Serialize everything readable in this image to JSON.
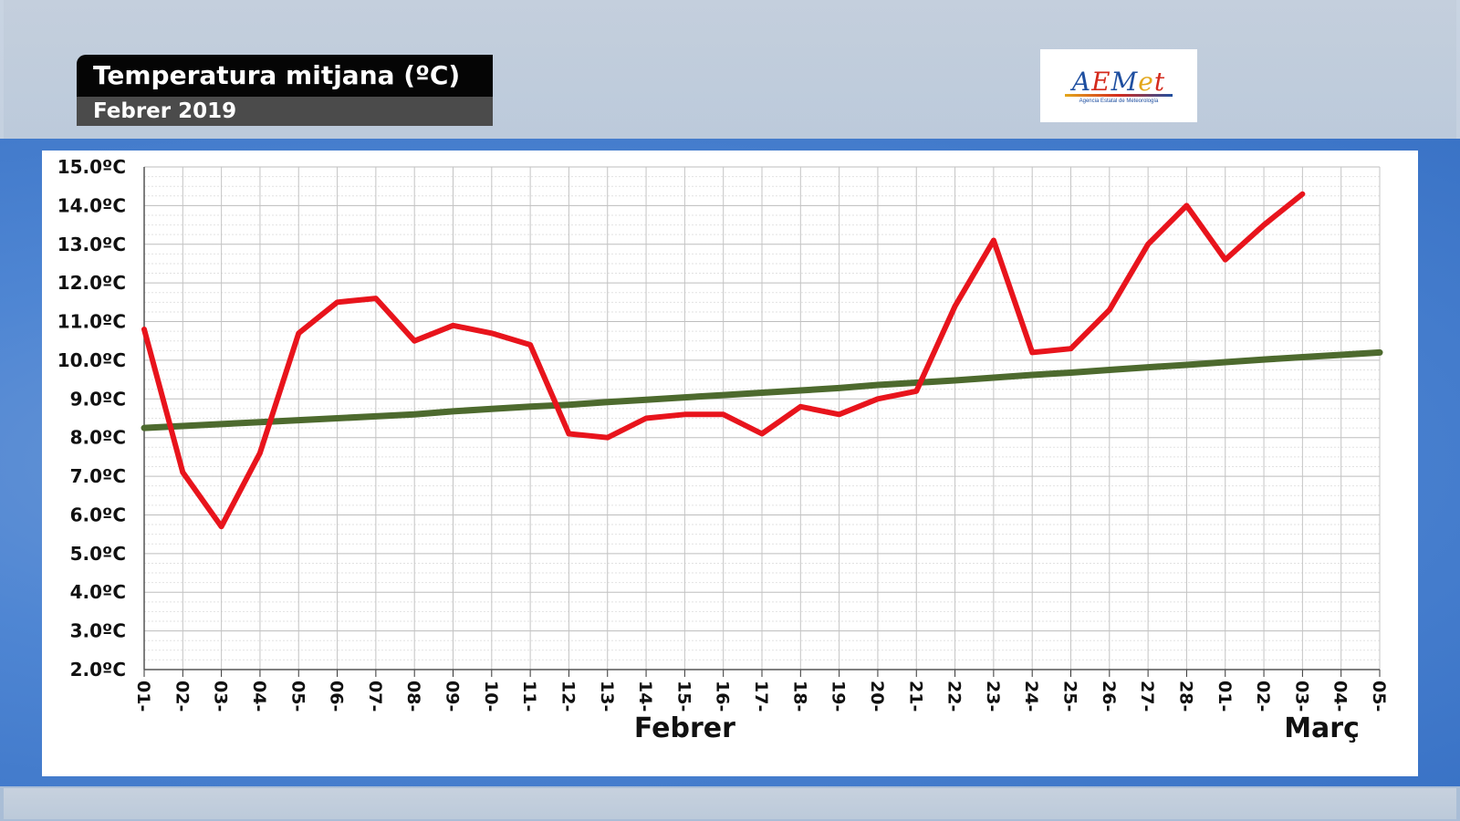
{
  "header": {
    "title": "Temperatura mitjana (ºC)",
    "subtitle": "Febrer 2019"
  },
  "logo": {
    "wordmark": "AEMet",
    "caption": "Agencia Estatal de Meteorología"
  },
  "colors": {
    "observed": "#e8141c",
    "normal": "#4d6a2e",
    "grid": "#c4c4c4",
    "title_bg": "#050505",
    "subtitle_bg": "#4b4b4b"
  },
  "chart_data": {
    "type": "line",
    "x": [
      "01-",
      "02-",
      "03-",
      "04-",
      "05-",
      "06-",
      "07-",
      "08-",
      "09-",
      "10-",
      "11-",
      "12-",
      "13-",
      "14-",
      "15-",
      "16-",
      "17-",
      "18-",
      "19-",
      "20-",
      "21-",
      "22-",
      "23-",
      "24-",
      "25-",
      "26-",
      "27-",
      "28-",
      "01-",
      "02-",
      "03-",
      "04-",
      "05-"
    ],
    "month_labels": [
      {
        "label": "Febrer",
        "at_index": 14
      },
      {
        "label": "Març",
        "at_index": 30.5
      }
    ],
    "ylim": [
      2,
      15
    ],
    "yticks": [
      "2.0ºC",
      "3.0ºC",
      "4.0ºC",
      "5.0ºC",
      "6.0ºC",
      "7.0ºC",
      "8.0ºC",
      "9.0ºC",
      "10.0ºC",
      "11.0ºC",
      "12.0ºC",
      "13.0ºC",
      "14.0ºC",
      "15.0ºC"
    ],
    "grid": true,
    "series": [
      {
        "values": [
          10.8,
          7.1,
          5.7,
          7.6,
          10.7,
          11.5,
          11.6,
          10.5,
          10.9,
          10.7,
          10.4,
          8.1,
          8.0,
          8.5,
          8.6,
          8.6,
          8.1,
          8.8,
          8.6,
          9.0,
          9.2,
          11.4,
          13.1,
          10.2,
          10.3,
          11.3,
          13.0,
          14.0,
          12.6,
          13.5,
          14.3,
          null,
          null
        ]
      },
      {
        "values": [
          8.25,
          8.3,
          8.35,
          8.4,
          8.45,
          8.5,
          8.55,
          8.6,
          8.68,
          8.74,
          8.8,
          8.85,
          8.92,
          8.98,
          9.04,
          9.1,
          9.16,
          9.22,
          9.28,
          9.36,
          9.42,
          9.48,
          9.55,
          9.62,
          9.68,
          9.75,
          9.82,
          9.88,
          9.95,
          10.02,
          10.08,
          10.14,
          10.2
        ]
      }
    ]
  }
}
